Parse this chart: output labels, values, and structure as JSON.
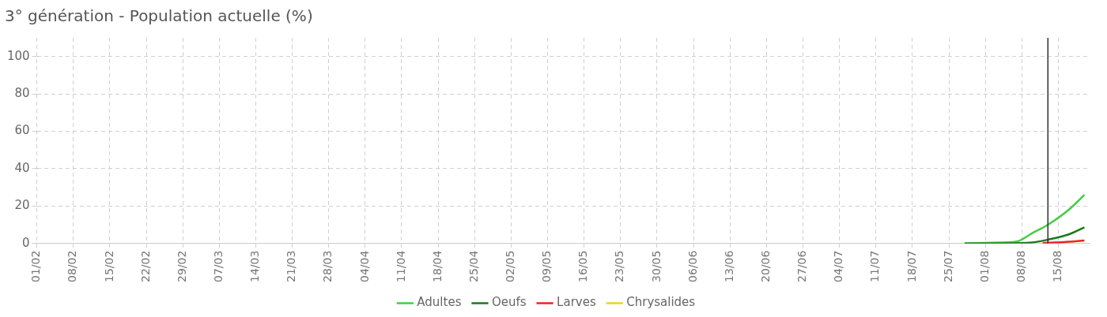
{
  "chart_data": {
    "type": "line",
    "title": "3° génération - Population actuelle (%)",
    "xlim": [
      "--02-01",
      "--08-21"
    ],
    "xticks": [
      {
        "value": "--02-01",
        "label": "01/02"
      },
      {
        "value": "--02-08",
        "label": "08/02"
      },
      {
        "value": "--02-15",
        "label": "15/02"
      },
      {
        "value": "--02-22",
        "label": "22/02"
      },
      {
        "value": "--02-29",
        "label": "29/02"
      },
      {
        "value": "--03-07",
        "label": "07/03"
      },
      {
        "value": "--03-14",
        "label": "14/03"
      },
      {
        "value": "--03-21",
        "label": "21/03"
      },
      {
        "value": "--03-28",
        "label": "28/03"
      },
      {
        "value": "--04-04",
        "label": "04/04"
      },
      {
        "value": "--04-11",
        "label": "11/04"
      },
      {
        "value": "--04-18",
        "label": "18/04"
      },
      {
        "value": "--04-25",
        "label": "25/04"
      },
      {
        "value": "--05-02",
        "label": "02/05"
      },
      {
        "value": "--05-09",
        "label": "09/05"
      },
      {
        "value": "--05-16",
        "label": "16/05"
      },
      {
        "value": "--05-23",
        "label": "23/05"
      },
      {
        "value": "--05-30",
        "label": "30/05"
      },
      {
        "value": "--06-06",
        "label": "06/06"
      },
      {
        "value": "--06-13",
        "label": "13/06"
      },
      {
        "value": "--06-20",
        "label": "20/06"
      },
      {
        "value": "--06-27",
        "label": "27/06"
      },
      {
        "value": "--07-04",
        "label": "04/07"
      },
      {
        "value": "--07-11",
        "label": "11/07"
      },
      {
        "value": "--07-18",
        "label": "18/07"
      },
      {
        "value": "--07-25",
        "label": "25/07"
      },
      {
        "value": "--08-01",
        "label": "01/08"
      },
      {
        "value": "--08-08",
        "label": "08/08"
      },
      {
        "value": "--08-15",
        "label": "15/08"
      }
    ],
    "ylim": [
      0,
      110
    ],
    "yticks": [
      0,
      20,
      40,
      60,
      80,
      100
    ],
    "grid": true,
    "legend": "bottom",
    "marker": "none",
    "line_style": "solid",
    "ref_lines": [
      {
        "axis": "x",
        "value": "--08-13",
        "color": "#333333"
      }
    ],
    "series": [
      {
        "name": "Adultes",
        "color": "#44cc44",
        "x": [
          "--07-28",
          "--08-04",
          "--08-07",
          "--08-10",
          "--08-13",
          "--08-17",
          "--08-20"
        ],
        "values": [
          0,
          0.5,
          1,
          5.5,
          10,
          18,
          26
        ]
      },
      {
        "name": "Oeufs",
        "color": "#1a7a1a",
        "x": [
          "--07-28",
          "--08-04",
          "--08-10",
          "--08-13",
          "--08-17",
          "--08-20"
        ],
        "values": [
          0,
          0,
          0.5,
          2,
          4.8,
          8.6
        ]
      },
      {
        "name": "Larves",
        "color": "#e8261e",
        "x": [
          "--08-12",
          "--08-16",
          "--08-20"
        ],
        "values": [
          0.2,
          0.7,
          1.5
        ]
      },
      {
        "name": "Chrysalides",
        "color": "#f0d020"
      }
    ]
  }
}
